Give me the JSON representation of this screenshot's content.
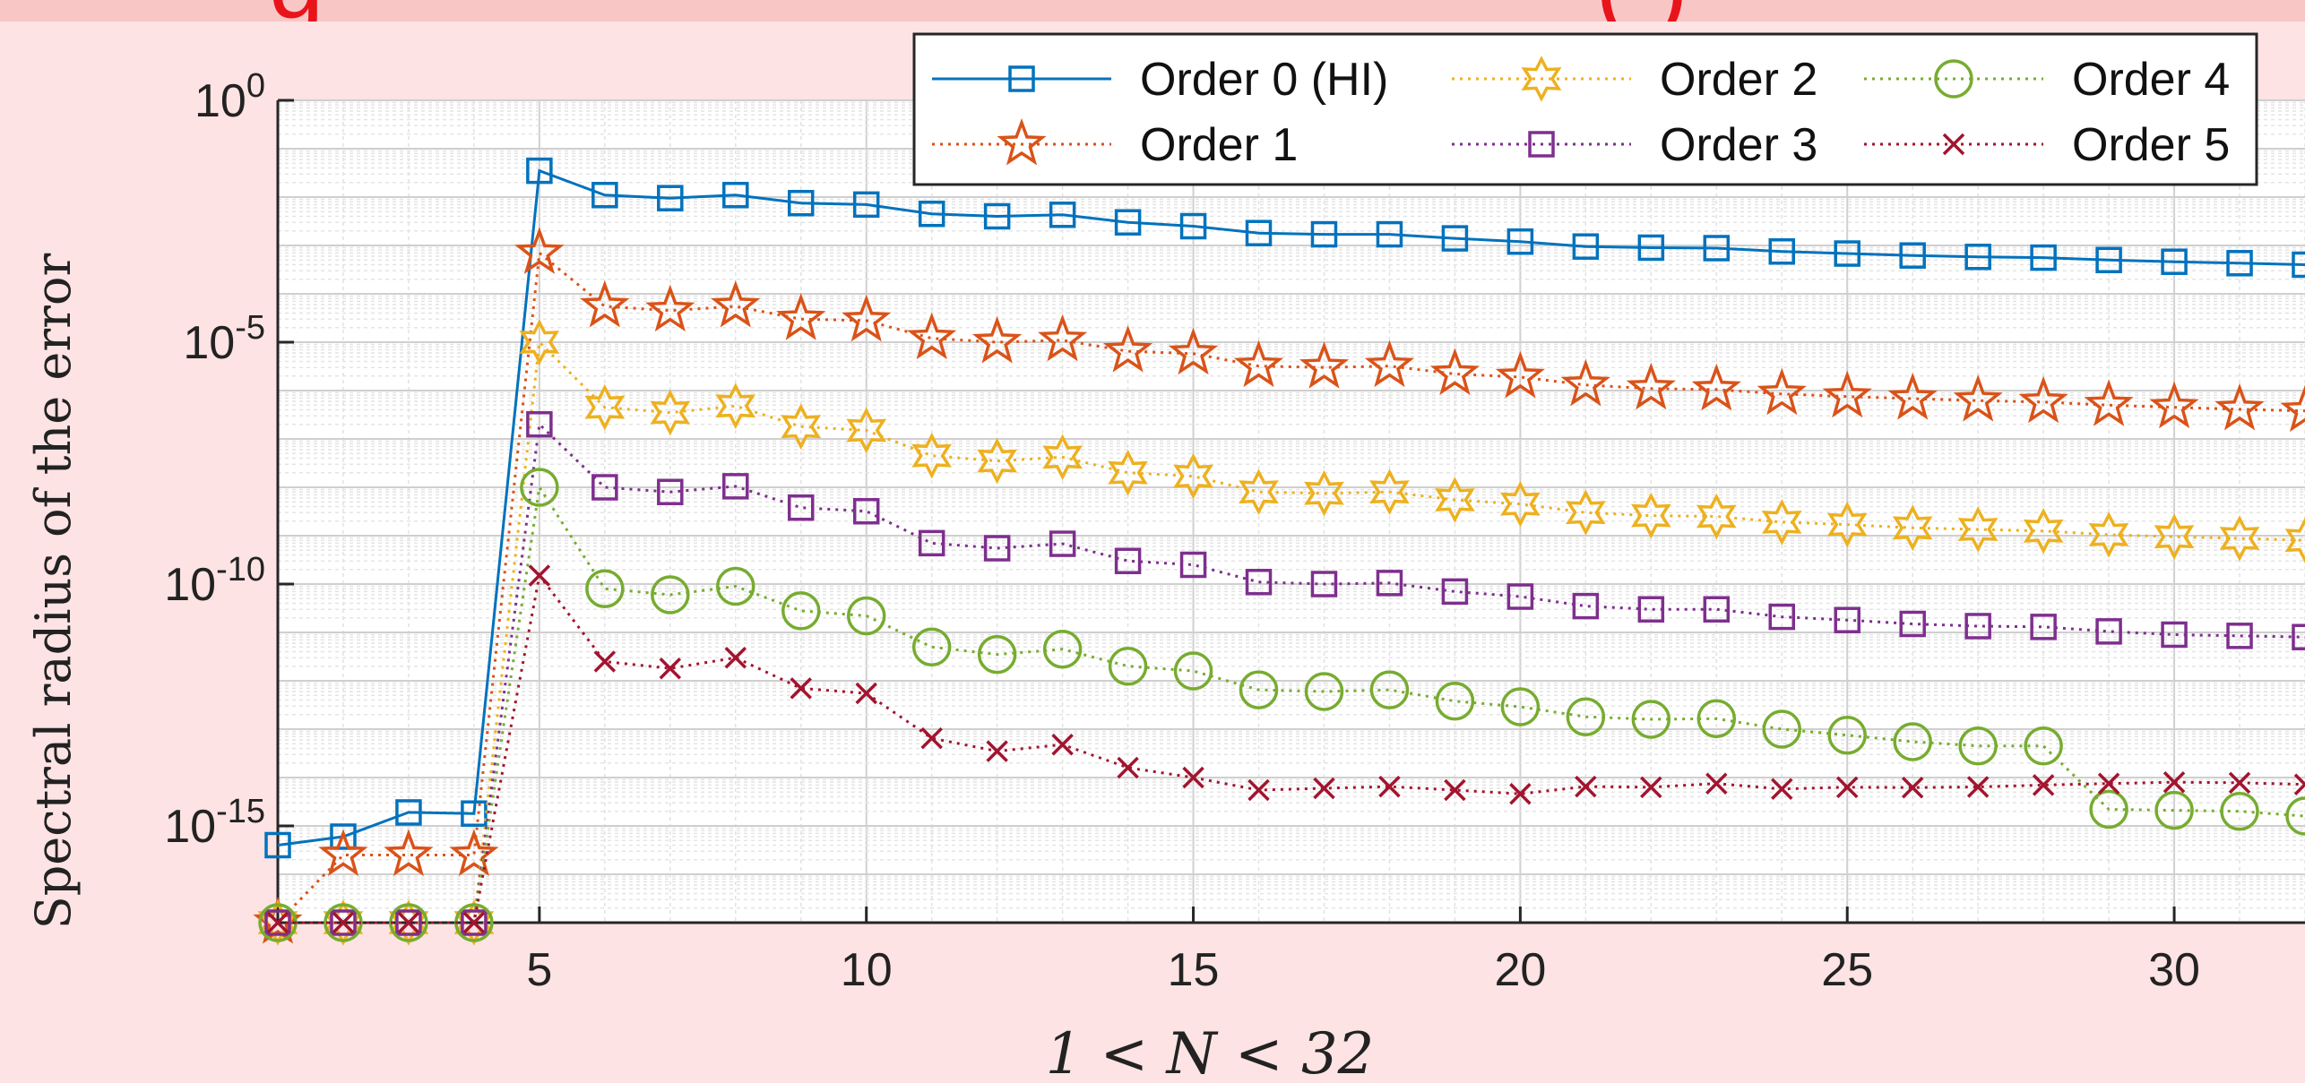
{
  "slide": {
    "title_fragment": "g",
    "title_fragment_right": "(        )"
  },
  "chart_data": {
    "type": "line",
    "title": "",
    "xlabel": "1 < N < 32",
    "ylabel": "Spectral radius of the error",
    "xscale": "linear",
    "yscale": "log",
    "xlim": [
      1,
      32
    ],
    "ylim": [
      1e-17,
      1
    ],
    "xticks": [
      5,
      10,
      15,
      20,
      25,
      30
    ],
    "yticks": [
      {
        "value": 1,
        "base": "10",
        "exp": "0"
      },
      {
        "value": 1e-05,
        "base": "10",
        "exp": "-5"
      },
      {
        "value": 1e-10,
        "base": "10",
        "exp": "-10"
      },
      {
        "value": 1e-15,
        "base": "10",
        "exp": "-15"
      }
    ],
    "grid": true,
    "minor_grid": true,
    "legend_position": "top-right",
    "x": [
      1,
      2,
      3,
      4,
      5,
      6,
      7,
      8,
      9,
      10,
      11,
      12,
      13,
      14,
      15,
      16,
      17,
      18,
      19,
      20,
      21,
      22,
      23,
      24,
      25,
      26,
      27,
      28,
      29,
      30,
      31,
      32
    ],
    "series": [
      {
        "name": "Order 0 (HI)",
        "color": "#0072bd",
        "marker": "square",
        "line": "solid",
        "values": [
          4e-16,
          6e-16,
          1.9e-15,
          1.8e-15,
          0.035,
          0.011,
          0.0095,
          0.011,
          0.0075,
          0.007,
          0.0045,
          0.004,
          0.0043,
          0.003,
          0.0025,
          0.0018,
          0.0017,
          0.0017,
          0.0014,
          0.0012,
          0.00095,
          0.0009,
          0.00088,
          0.00075,
          0.00068,
          0.00062,
          0.00058,
          0.00056,
          0.0005,
          0.00046,
          0.00043,
          0.0004
        ]
      },
      {
        "name": "Order 1",
        "color": "#d95319",
        "marker": "pentagram",
        "line": "dotted",
        "values": [
          1e-17,
          2.5e-16,
          2.5e-16,
          2.5e-16,
          0.0007,
          5.5e-05,
          4.5e-05,
          5.5e-05,
          3e-05,
          2.8e-05,
          1.2e-05,
          1e-05,
          1.1e-05,
          6.5e-06,
          5.8e-06,
          3.2e-06,
          3e-06,
          3.2e-06,
          2.2e-06,
          1.9e-06,
          1.3e-06,
          1.1e-06,
          1.05e-06,
          8.5e-07,
          7.5e-07,
          6.8e-07,
          6.2e-07,
          5.8e-07,
          5e-07,
          4.5e-07,
          4.1e-07,
          3.8e-07
        ]
      },
      {
        "name": "Order 2",
        "color": "#edb120",
        "marker": "hexagram",
        "line": "dotted",
        "values": [
          1e-17,
          1e-17,
          1e-17,
          1e-17,
          1e-05,
          4.5e-07,
          3.5e-07,
          4.8e-07,
          1.8e-07,
          1.5e-07,
          4.5e-08,
          3.5e-08,
          4.2e-08,
          2e-08,
          1.7e-08,
          8e-09,
          7.5e-09,
          8e-09,
          5.5e-09,
          4.5e-09,
          3e-09,
          2.6e-09,
          2.5e-09,
          1.9e-09,
          1.7e-09,
          1.45e-09,
          1.35e-09,
          1.25e-09,
          1.05e-09,
          9.5e-10,
          8.8e-10,
          8e-10
        ]
      },
      {
        "name": "Order 3",
        "color": "#7e2f8e",
        "marker": "square",
        "line": "dotted",
        "values": [
          1e-17,
          1e-17,
          1e-17,
          1e-17,
          2e-07,
          1e-08,
          8e-09,
          1.05e-08,
          3.8e-09,
          3.2e-09,
          7e-10,
          5.5e-10,
          6.8e-10,
          3e-10,
          2.5e-10,
          1.1e-10,
          1e-10,
          1.05e-10,
          7e-11,
          5.5e-11,
          3.5e-11,
          3e-11,
          3e-11,
          2.1e-11,
          1.8e-11,
          1.5e-11,
          1.35e-11,
          1.3e-11,
          1.05e-11,
          9e-12,
          8.5e-12,
          8e-12
        ]
      },
      {
        "name": "Order 4",
        "color": "#77ac30",
        "marker": "circle",
        "line": "dotted",
        "values": [
          1e-17,
          1e-17,
          1e-17,
          1e-17,
          1e-08,
          8e-11,
          6e-11,
          9e-11,
          2.8e-11,
          2.2e-11,
          5e-12,
          3.5e-12,
          4.5e-12,
          2e-12,
          1.6e-12,
          6.5e-13,
          6e-13,
          6.5e-13,
          3.8e-13,
          2.9e-13,
          1.8e-13,
          1.6e-13,
          1.65e-13,
          1e-13,
          7.5e-14,
          5.5e-14,
          4.5e-14,
          4.5e-14,
          2.2e-15,
          2.1e-15,
          2e-15,
          1.6e-15
        ]
      },
      {
        "name": "Order 5",
        "color": "#a2142f",
        "marker": "x",
        "line": "dotted",
        "values": [
          1e-17,
          1e-17,
          1e-17,
          1e-17,
          1.5e-10,
          2.5e-12,
          1.8e-12,
          3e-12,
          7e-13,
          5.5e-13,
          6.5e-14,
          3.5e-14,
          4.8e-14,
          1.6e-14,
          1e-14,
          5.5e-15,
          6e-15,
          6.5e-15,
          5.5e-15,
          4.6e-15,
          6.5e-15,
          6.3e-15,
          7.5e-15,
          5.8e-15,
          6.3e-15,
          6.2e-15,
          6.4e-15,
          7e-15,
          7.5e-15,
          8e-15,
          7.8e-15,
          7.2e-15
        ]
      }
    ]
  }
}
